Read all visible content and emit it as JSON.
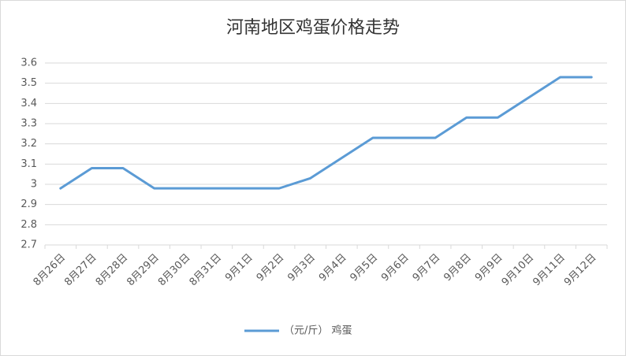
{
  "chart_data": {
    "type": "line",
    "title": "河南地区鸡蛋价格走势",
    "categories": [
      "8月26日",
      "8月27日",
      "8月28日",
      "8月29日",
      "8月30日",
      "8月31日",
      "9月1日",
      "9月2日",
      "9月3日",
      "9月4日",
      "9月5日",
      "9月6日",
      "9月7日",
      "9月8日",
      "9月9日",
      "9月10日",
      "9月11日",
      "9月12日"
    ],
    "series": [
      {
        "name": "（元/斤） 鸡蛋",
        "color": "#5b9bd5",
        "values": [
          2.98,
          3.08,
          3.08,
          2.98,
          2.98,
          2.98,
          2.98,
          2.98,
          3.03,
          3.13,
          3.23,
          3.23,
          3.23,
          3.33,
          3.33,
          3.43,
          3.53,
          3.53
        ]
      }
    ],
    "ylim": [
      2.7,
      3.6
    ],
    "yticks": [
      2.7,
      2.8,
      2.9,
      3,
      3.1,
      3.2,
      3.3,
      3.4,
      3.5,
      3.6
    ],
    "grid": true,
    "legend": "bottom"
  }
}
